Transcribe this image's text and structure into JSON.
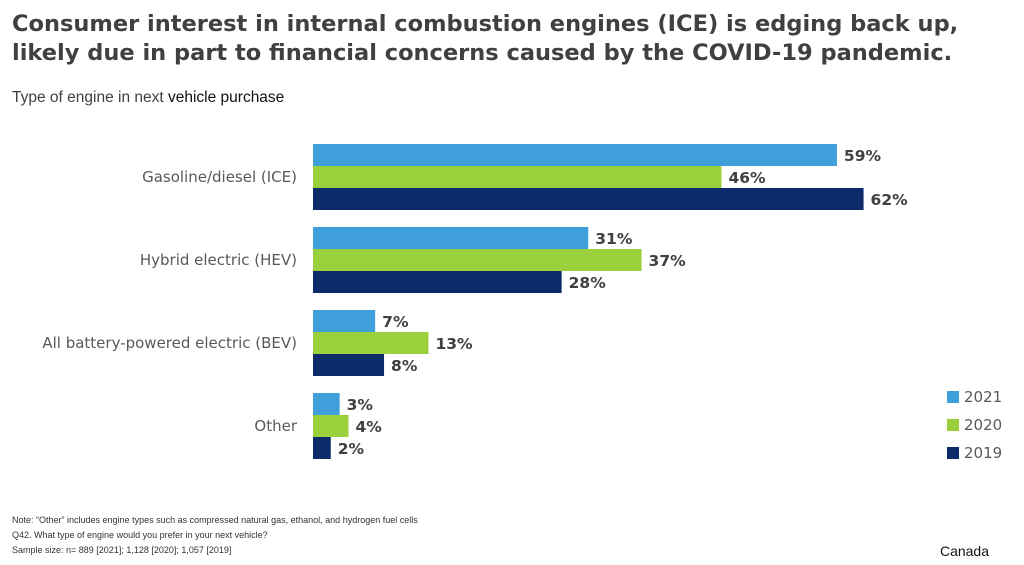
{
  "headline": {
    "line1": "Consumer interest in internal combustion engines (ICE) is edging back up,",
    "line2": "likely due in part to financial concerns caused by the COVID-19 pandemic."
  },
  "subtitle": {
    "prefix": "Type of engine in next",
    "emph": "vehicle purchase"
  },
  "chart_data": {
    "type": "bar",
    "orientation": "horizontal",
    "categories": [
      "Gasoline/diesel (ICE)",
      "Hybrid electric (HEV)",
      "All battery-powered electric (BEV)",
      "Other"
    ],
    "series": [
      {
        "name": "2021",
        "color": "#3e9fdb",
        "values": [
          59,
          31,
          7,
          3
        ],
        "labels": [
          "59%",
          "31%",
          "7%",
          "3%"
        ]
      },
      {
        "name": "2020",
        "color": "#9bd03d",
        "values": [
          46,
          37,
          13,
          4
        ],
        "labels": [
          "46%",
          "37%",
          "13%",
          "4%"
        ]
      },
      {
        "name": "2019",
        "color": "#0d2b6b",
        "values": [
          62,
          28,
          8,
          2
        ],
        "labels": [
          "62%",
          "28%",
          "8%",
          "2%"
        ]
      }
    ],
    "value_unit": "%",
    "xlim": [
      0,
      100
    ],
    "grid": false,
    "axis_ticks_shown": false,
    "legend_position": "bottom-right"
  },
  "footnotes": {
    "note": "Note: “Other” includes engine types such as compressed natural gas, ethanol, and hydrogen fuel cells",
    "question": "Q42. What type of engine would you prefer in your next vehicle?",
    "sample": "Sample size: n= 889 [2021]; 1,128 [2020]; 1,057 [2019]"
  },
  "region": "Canada"
}
